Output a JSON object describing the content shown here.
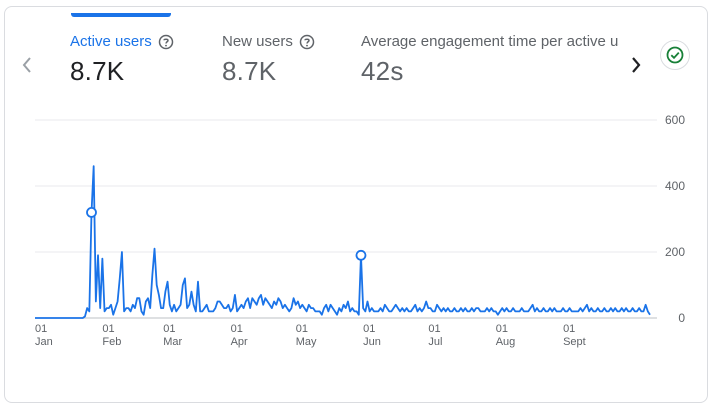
{
  "metrics": [
    {
      "label": "Active users",
      "value": "8.7K",
      "active": true
    },
    {
      "label": "New users",
      "value": "8.7K",
      "active": false
    },
    {
      "label": "Average engagement time per active us",
      "value": "42s",
      "active": false
    }
  ],
  "icons": {
    "prev": "chevron-left-icon",
    "next": "chevron-right-icon",
    "help": "help-circle-icon",
    "status": "check-circle-icon"
  },
  "colors": {
    "accent": "#1a73e8",
    "status_green": "#188038",
    "grid": "#e8eaed"
  },
  "chart_data": {
    "type": "line",
    "ylim": [
      0,
      600
    ],
    "y_ticks": [
      "600",
      "400",
      "200",
      "0"
    ],
    "y_tick_values": [
      600,
      400,
      200,
      0
    ],
    "x_ticks": [
      {
        "day": "01",
        "month": "Jan",
        "day_index": 0
      },
      {
        "day": "01",
        "month": "Feb",
        "day_index": 31
      },
      {
        "day": "01",
        "month": "Mar",
        "day_index": 59
      },
      {
        "day": "01",
        "month": "Apr",
        "day_index": 90
      },
      {
        "day": "01",
        "month": "May",
        "day_index": 120
      },
      {
        "day": "01",
        "month": "Jun",
        "day_index": 151
      },
      {
        "day": "01",
        "month": "Jul",
        "day_index": 181
      },
      {
        "day": "01",
        "month": "Aug",
        "day_index": 212
      },
      {
        "day": "01",
        "month": "Sept",
        "day_index": 243
      }
    ],
    "series": [
      {
        "color": "#1a73e8",
        "values": [
          0,
          0,
          0,
          0,
          0,
          0,
          0,
          0,
          0,
          0,
          0,
          0,
          0,
          0,
          0,
          0,
          0,
          0,
          0,
          0,
          0,
          0,
          0,
          5,
          30,
          20,
          320,
          460,
          50,
          190,
          30,
          180,
          20,
          30,
          30,
          40,
          10,
          30,
          50,
          120,
          200,
          20,
          30,
          30,
          20,
          40,
          30,
          60,
          60,
          20,
          10,
          50,
          60,
          30,
          130,
          210,
          100,
          70,
          30,
          30,
          80,
          110,
          40,
          20,
          40,
          20,
          30,
          40,
          100,
          120,
          30,
          40,
          80,
          40,
          20,
          110,
          20,
          20,
          30,
          40,
          20,
          20,
          20,
          30,
          50,
          50,
          40,
          30,
          30,
          40,
          20,
          30,
          70,
          20,
          30,
          40,
          30,
          50,
          60,
          30,
          60,
          50,
          40,
          60,
          70,
          40,
          60,
          50,
          40,
          30,
          50,
          40,
          60,
          50,
          30,
          40,
          30,
          20,
          30,
          60,
          40,
          50,
          30,
          40,
          30,
          20,
          40,
          30,
          30,
          20,
          20,
          20,
          10,
          30,
          40,
          20,
          40,
          30,
          20,
          10,
          30,
          20,
          40,
          30,
          50,
          20,
          30,
          20,
          20,
          10,
          190,
          30,
          20,
          50,
          20,
          30,
          20,
          20,
          20,
          30,
          20,
          40,
          30,
          20,
          20,
          30,
          40,
          30,
          20,
          30,
          20,
          30,
          20,
          20,
          30,
          40,
          20,
          30,
          20,
          30,
          50,
          30,
          30,
          20,
          20,
          40,
          30,
          20,
          30,
          20,
          30,
          20,
          20,
          30,
          20,
          20,
          30,
          20,
          30,
          20,
          20,
          30,
          20,
          30,
          30,
          20,
          20,
          20,
          30,
          20,
          30,
          20,
          20,
          10,
          20,
          30,
          20,
          30,
          20,
          20,
          30,
          20,
          20,
          20,
          30,
          20,
          20,
          20,
          30,
          40,
          20,
          30,
          20,
          20,
          30,
          20,
          20,
          30,
          20,
          30,
          20,
          20,
          20,
          30,
          20,
          20,
          30,
          20,
          20,
          20,
          20,
          30,
          20,
          30,
          40,
          20,
          30,
          20,
          20,
          30,
          20,
          20,
          30,
          20,
          20,
          30,
          20,
          30,
          20,
          20,
          30,
          20,
          30,
          20,
          20,
          30,
          20,
          20,
          30,
          20,
          20,
          40,
          20,
          10
        ],
        "markers": [
          {
            "day_index": 26,
            "value": 320
          },
          {
            "day_index": 150,
            "value": 190
          }
        ]
      }
    ]
  }
}
